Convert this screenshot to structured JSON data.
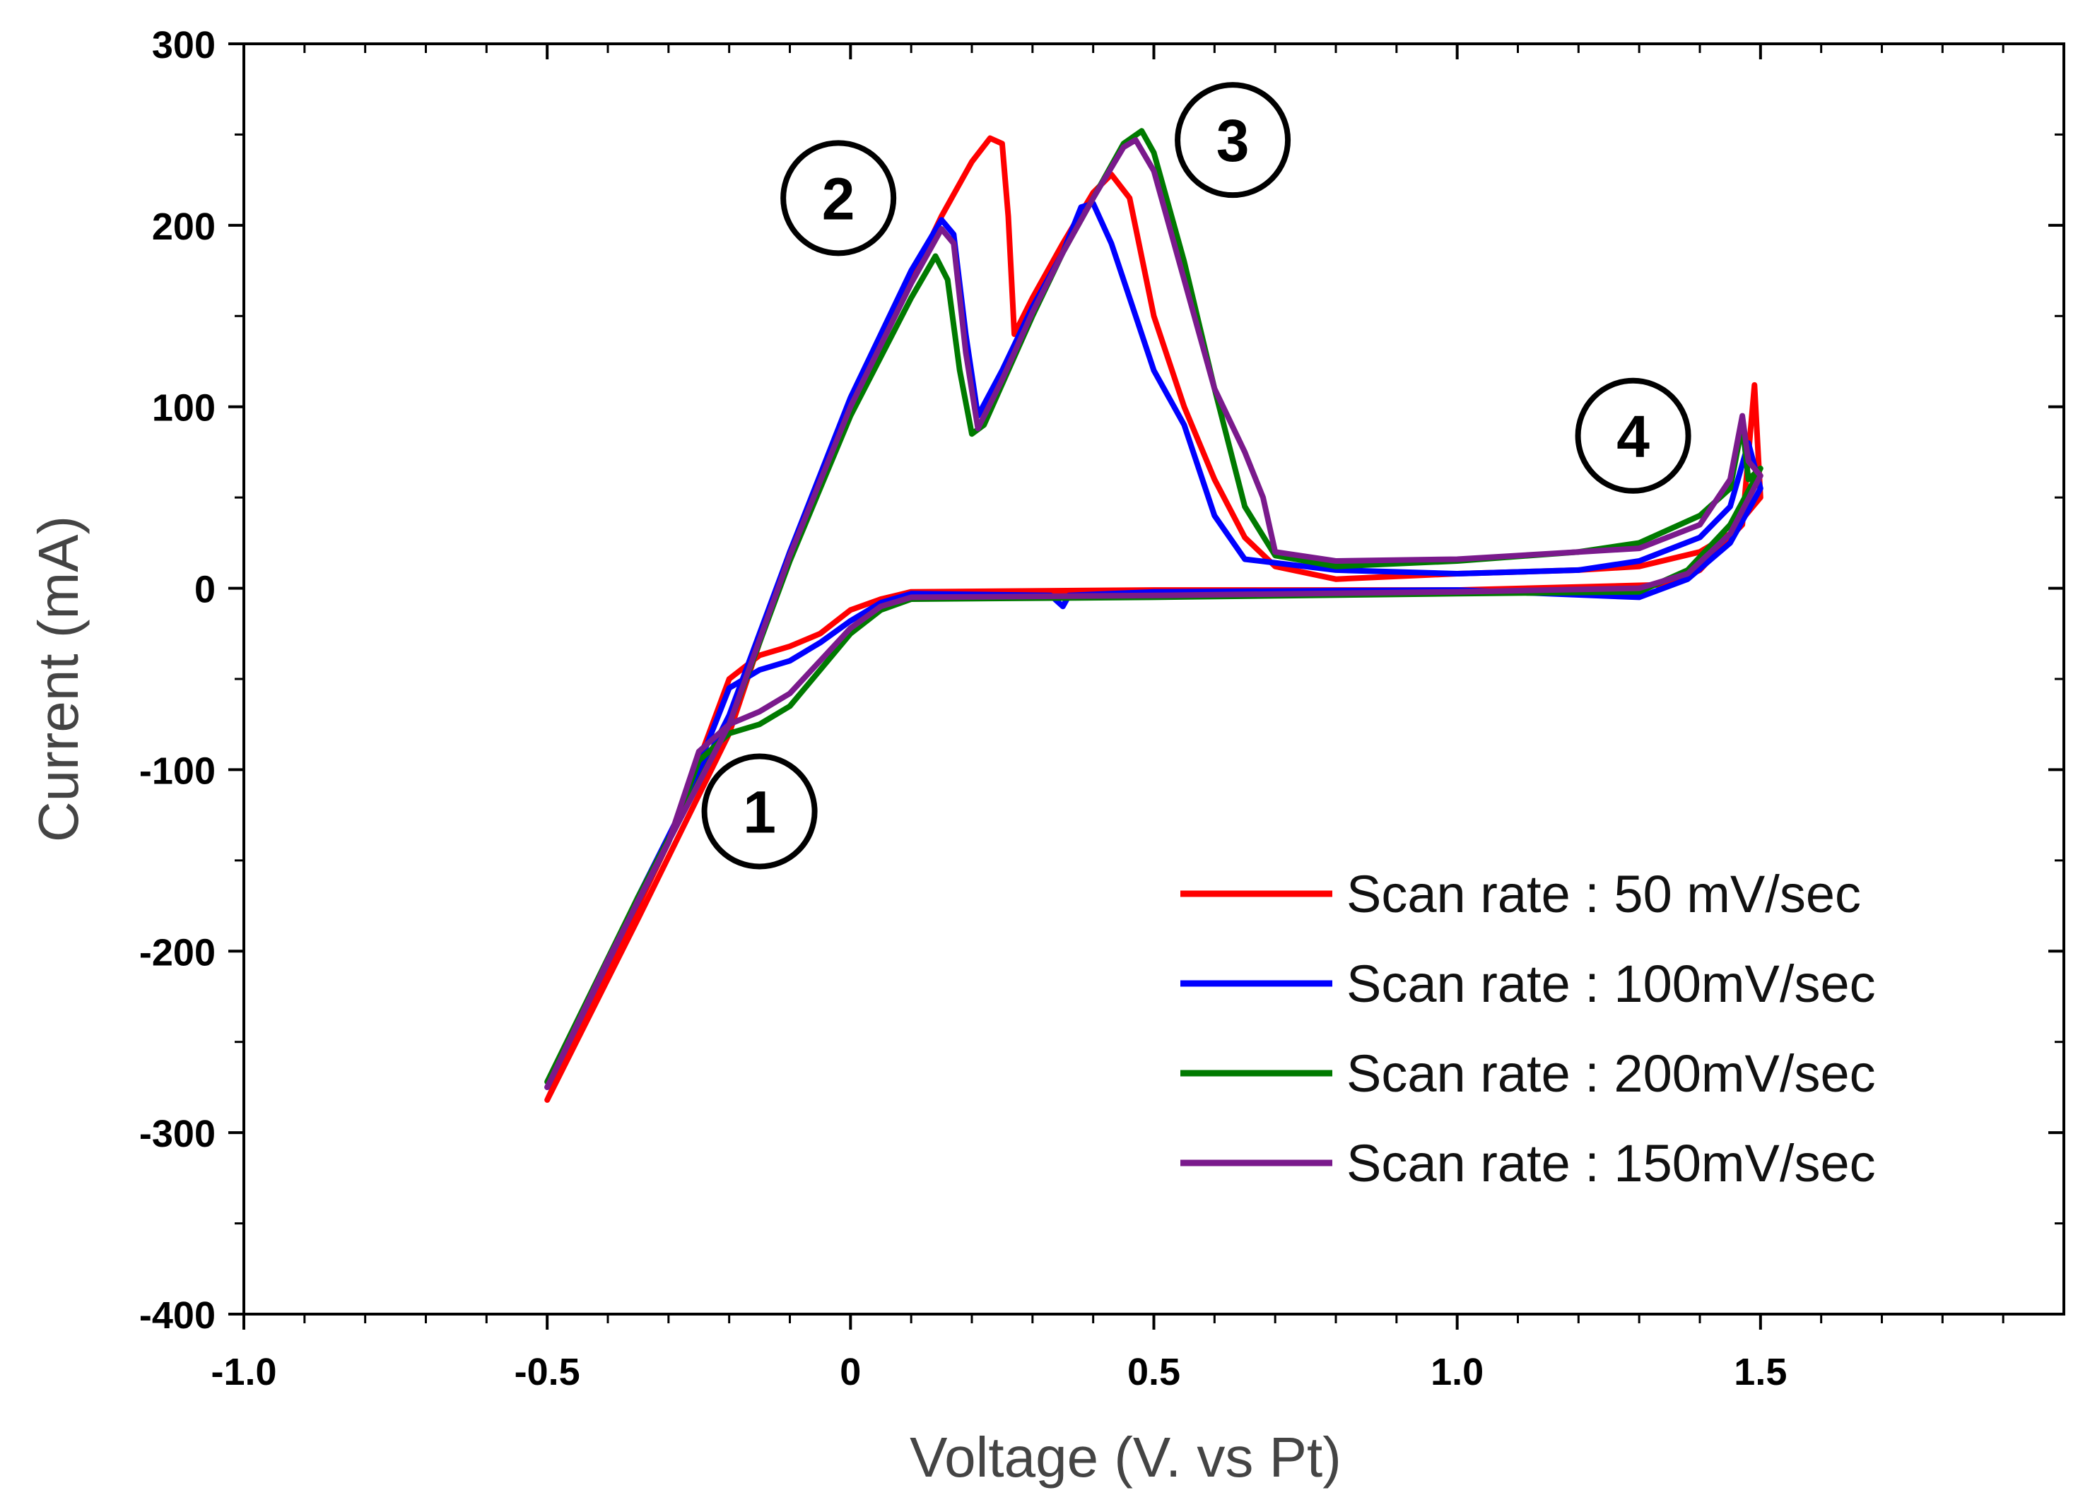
{
  "chart_data": {
    "type": "line",
    "title": "",
    "xlabel": "Voltage (V. vs Pt)",
    "ylabel": "Current (mA)",
    "xlim": [
      -1.0,
      2.0
    ],
    "ylim": [
      -400,
      300
    ],
    "x_ticks": [
      -1.0,
      -0.5,
      0.0,
      0.5,
      1.0,
      1.5
    ],
    "x_tick_labels": [
      "-1.0",
      "-0.5",
      "0",
      "0.5",
      "1.0",
      "1.5"
    ],
    "y_ticks": [
      300,
      200,
      100,
      0,
      -100,
      -200,
      -300,
      -400
    ],
    "y_tick_labels": [
      "300",
      "200",
      "100",
      "0",
      "-100",
      "-200",
      "-300",
      "-400"
    ],
    "legend_position": "bottom-right",
    "series": [
      {
        "name": "Scan rate : 50 mV/sec",
        "color": "#ff0000",
        "points": [
          [
            -0.5,
            -282
          ],
          [
            -0.35,
            -182
          ],
          [
            -0.2,
            -80
          ],
          [
            -0.1,
            20
          ],
          [
            0.0,
            100
          ],
          [
            0.1,
            170
          ],
          [
            0.15,
            205
          ],
          [
            0.2,
            235
          ],
          [
            0.23,
            248
          ],
          [
            0.25,
            245
          ],
          [
            0.26,
            205
          ],
          [
            0.27,
            140
          ],
          [
            0.3,
            160
          ],
          [
            0.35,
            190
          ],
          [
            0.4,
            218
          ],
          [
            0.43,
            228
          ],
          [
            0.46,
            215
          ],
          [
            0.5,
            150
          ],
          [
            0.55,
            100
          ],
          [
            0.6,
            60
          ],
          [
            0.65,
            28
          ],
          [
            0.7,
            12
          ],
          [
            0.8,
            5
          ],
          [
            1.0,
            8
          ],
          [
            1.2,
            10
          ],
          [
            1.3,
            12
          ],
          [
            1.4,
            20
          ],
          [
            1.45,
            30
          ],
          [
            1.5,
            50
          ],
          [
            1.49,
            112
          ],
          [
            1.47,
            35
          ],
          [
            1.4,
            10
          ],
          [
            1.35,
            2
          ],
          [
            1.0,
            -1
          ],
          [
            0.5,
            -1
          ],
          [
            0.1,
            -2
          ],
          [
            0.05,
            -6
          ],
          [
            0.0,
            -12
          ],
          [
            -0.05,
            -25
          ],
          [
            -0.1,
            -32
          ],
          [
            -0.15,
            -37
          ],
          [
            -0.2,
            -50
          ],
          [
            -0.3,
            -140
          ],
          [
            -0.4,
            -210
          ],
          [
            -0.5,
            -282
          ]
        ]
      },
      {
        "name": "Scan rate : 100mV/sec",
        "color": "#0000ff",
        "points": [
          [
            -0.5,
            -275
          ],
          [
            -0.35,
            -170
          ],
          [
            -0.2,
            -70
          ],
          [
            -0.1,
            20
          ],
          [
            0.0,
            105
          ],
          [
            0.1,
            175
          ],
          [
            0.15,
            203
          ],
          [
            0.17,
            195
          ],
          [
            0.19,
            140
          ],
          [
            0.21,
            95
          ],
          [
            0.25,
            120
          ],
          [
            0.3,
            155
          ],
          [
            0.35,
            185
          ],
          [
            0.38,
            210
          ],
          [
            0.4,
            212
          ],
          [
            0.43,
            190
          ],
          [
            0.47,
            150
          ],
          [
            0.5,
            120
          ],
          [
            0.55,
            90
          ],
          [
            0.6,
            40
          ],
          [
            0.65,
            16
          ],
          [
            0.8,
            10
          ],
          [
            1.0,
            8
          ],
          [
            1.2,
            10
          ],
          [
            1.3,
            15
          ],
          [
            1.4,
            28
          ],
          [
            1.45,
            45
          ],
          [
            1.48,
            80
          ],
          [
            1.5,
            55
          ],
          [
            1.45,
            25
          ],
          [
            1.38,
            5
          ],
          [
            1.3,
            -5
          ],
          [
            1.0,
            -1
          ],
          [
            0.5,
            -2
          ],
          [
            0.36,
            -4
          ],
          [
            0.35,
            -10
          ],
          [
            0.33,
            -4
          ],
          [
            0.1,
            -3
          ],
          [
            0.05,
            -8
          ],
          [
            0.0,
            -18
          ],
          [
            -0.05,
            -30
          ],
          [
            -0.1,
            -40
          ],
          [
            -0.15,
            -45
          ],
          [
            -0.2,
            -55
          ],
          [
            -0.3,
            -140
          ],
          [
            -0.4,
            -205
          ],
          [
            -0.5,
            -275
          ]
        ]
      },
      {
        "name": "Scan rate : 200mV/sec",
        "color": "#007a00",
        "points": [
          [
            -0.5,
            -272
          ],
          [
            -0.35,
            -170
          ],
          [
            -0.2,
            -75
          ],
          [
            -0.1,
            15
          ],
          [
            0.0,
            95
          ],
          [
            0.1,
            160
          ],
          [
            0.14,
            183
          ],
          [
            0.16,
            170
          ],
          [
            0.18,
            120
          ],
          [
            0.2,
            85
          ],
          [
            0.22,
            90
          ],
          [
            0.3,
            150
          ],
          [
            0.35,
            185
          ],
          [
            0.4,
            215
          ],
          [
            0.45,
            245
          ],
          [
            0.48,
            252
          ],
          [
            0.5,
            240
          ],
          [
            0.55,
            180
          ],
          [
            0.6,
            110
          ],
          [
            0.65,
            45
          ],
          [
            0.7,
            18
          ],
          [
            0.8,
            12
          ],
          [
            1.0,
            15
          ],
          [
            1.2,
            20
          ],
          [
            1.3,
            25
          ],
          [
            1.4,
            40
          ],
          [
            1.45,
            55
          ],
          [
            1.47,
            90
          ],
          [
            1.48,
            60
          ],
          [
            1.5,
            66
          ],
          [
            1.45,
            35
          ],
          [
            1.38,
            10
          ],
          [
            1.3,
            -2
          ],
          [
            1.0,
            -3
          ],
          [
            0.5,
            -5
          ],
          [
            0.1,
            -6
          ],
          [
            0.05,
            -12
          ],
          [
            0.0,
            -25
          ],
          [
            -0.05,
            -45
          ],
          [
            -0.1,
            -65
          ],
          [
            -0.15,
            -75
          ],
          [
            -0.2,
            -80
          ],
          [
            -0.25,
            -95
          ],
          [
            -0.3,
            -140
          ],
          [
            -0.4,
            -205
          ],
          [
            -0.5,
            -272
          ]
        ]
      },
      {
        "name": "Scan rate : 150mV/sec",
        "color": "#7a1a8c",
        "points": [
          [
            -0.5,
            -275
          ],
          [
            -0.35,
            -172
          ],
          [
            -0.2,
            -75
          ],
          [
            -0.1,
            18
          ],
          [
            0.0,
            100
          ],
          [
            0.1,
            168
          ],
          [
            0.15,
            198
          ],
          [
            0.17,
            190
          ],
          [
            0.19,
            130
          ],
          [
            0.21,
            88
          ],
          [
            0.25,
            115
          ],
          [
            0.3,
            152
          ],
          [
            0.35,
            185
          ],
          [
            0.4,
            215
          ],
          [
            0.45,
            243
          ],
          [
            0.47,
            247
          ],
          [
            0.5,
            230
          ],
          [
            0.55,
            170
          ],
          [
            0.6,
            110
          ],
          [
            0.65,
            75
          ],
          [
            0.68,
            50
          ],
          [
            0.7,
            20
          ],
          [
            0.8,
            15
          ],
          [
            1.0,
            16
          ],
          [
            1.2,
            20
          ],
          [
            1.3,
            22
          ],
          [
            1.4,
            35
          ],
          [
            1.45,
            60
          ],
          [
            1.47,
            95
          ],
          [
            1.48,
            70
          ],
          [
            1.5,
            62
          ],
          [
            1.45,
            30
          ],
          [
            1.38,
            8
          ],
          [
            1.3,
            0
          ],
          [
            1.0,
            -2
          ],
          [
            0.5,
            -4
          ],
          [
            0.1,
            -5
          ],
          [
            0.05,
            -10
          ],
          [
            0.0,
            -22
          ],
          [
            -0.05,
            -40
          ],
          [
            -0.1,
            -58
          ],
          [
            -0.15,
            -68
          ],
          [
            -0.2,
            -75
          ],
          [
            -0.25,
            -90
          ],
          [
            -0.3,
            -140
          ],
          [
            -0.4,
            -205
          ],
          [
            -0.5,
            -275
          ]
        ]
      }
    ],
    "annotations": [
      {
        "label": "1",
        "x": -0.15,
        "y": -123
      },
      {
        "label": "2",
        "x": -0.02,
        "y": 215
      },
      {
        "label": "3",
        "x": 0.63,
        "y": 247
      },
      {
        "label": "4",
        "x": 1.29,
        "y": 84
      }
    ]
  }
}
